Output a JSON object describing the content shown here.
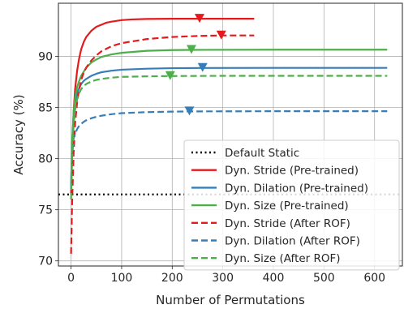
{
  "chart_data": {
    "type": "line",
    "title": "",
    "xlabel": "Number of Permutations",
    "ylabel": "Accuracy (%)",
    "xlim": [
      -25,
      655
    ],
    "ylim": [
      69.5,
      95.2
    ],
    "xticks": [
      0,
      100,
      200,
      300,
      400,
      500,
      600
    ],
    "yticks": [
      70,
      75,
      80,
      85,
      90
    ],
    "grid": true,
    "legend_position": "bottom-right",
    "reference_line": {
      "name": "Default Static",
      "y": 76.5,
      "color": "#000000",
      "style": "dotted"
    },
    "series": [
      {
        "name": "Dyn. Stride (Pre-trained)",
        "color": "#e41a1c",
        "style": "solid",
        "x": [
          0,
          2,
          5,
          8,
          12,
          16,
          20,
          25,
          30,
          40,
          50,
          60,
          70,
          80,
          100,
          120,
          150,
          200,
          250,
          300,
          362
        ],
        "y": [
          76.5,
          80.5,
          84.5,
          86.8,
          88.6,
          89.8,
          90.7,
          91.4,
          91.9,
          92.5,
          92.9,
          93.1,
          93.3,
          93.4,
          93.55,
          93.62,
          93.66,
          93.68,
          93.68,
          93.68,
          93.68
        ],
        "marker": {
          "x": 254,
          "y": 93.68,
          "shape": "triangle-down"
        }
      },
      {
        "name": "Dyn. Dilation (Pre-trained)",
        "color": "#377eb8",
        "style": "solid",
        "x": [
          0,
          2,
          5,
          8,
          12,
          16,
          20,
          25,
          30,
          40,
          50,
          60,
          80,
          100,
          150,
          200,
          260,
          400,
          500,
          625
        ],
        "y": [
          77.5,
          81.5,
          84.0,
          85.5,
          86.4,
          86.9,
          87.3,
          87.6,
          87.8,
          88.1,
          88.3,
          88.45,
          88.6,
          88.7,
          88.8,
          88.85,
          88.87,
          88.88,
          88.88,
          88.88
        ],
        "marker": {
          "x": 260,
          "y": 88.87,
          "shape": "triangle-down"
        }
      },
      {
        "name": "Dyn. Size (Pre-trained)",
        "color": "#4daf4a",
        "style": "solid",
        "x": [
          0,
          2,
          5,
          8,
          12,
          16,
          20,
          25,
          30,
          40,
          50,
          60,
          80,
          100,
          150,
          200,
          238,
          400,
          500,
          625
        ],
        "y": [
          77.0,
          81.5,
          84.5,
          86.0,
          87.0,
          87.6,
          88.1,
          88.5,
          88.9,
          89.4,
          89.7,
          89.95,
          90.2,
          90.35,
          90.55,
          90.62,
          90.64,
          90.66,
          90.66,
          90.66
        ],
        "marker": {
          "x": 238,
          "y": 90.64,
          "shape": "triangle-down"
        }
      },
      {
        "name": "Dyn. Stride (After ROF)",
        "color": "#e41a1c",
        "style": "dashed",
        "x": [
          0,
          2,
          5,
          8,
          12,
          16,
          20,
          25,
          30,
          40,
          50,
          60,
          80,
          100,
          150,
          200,
          250,
          297,
          362
        ],
        "y": [
          70.7,
          75.5,
          80.5,
          83.5,
          85.5,
          86.8,
          87.7,
          88.4,
          88.9,
          89.6,
          90.1,
          90.5,
          91.0,
          91.3,
          91.7,
          91.9,
          92.0,
          92.05,
          92.05
        ],
        "marker": {
          "x": 297,
          "y": 92.05,
          "shape": "triangle-down"
        }
      },
      {
        "name": "Dyn. Dilation (After ROF)",
        "color": "#377eb8",
        "style": "dashed",
        "x": [
          0,
          2,
          5,
          8,
          12,
          16,
          20,
          25,
          30,
          40,
          50,
          60,
          80,
          100,
          150,
          200,
          234,
          400,
          500,
          625
        ],
        "y": [
          77.0,
          80.0,
          82.0,
          82.4,
          82.9,
          83.2,
          83.4,
          83.6,
          83.75,
          83.95,
          84.1,
          84.2,
          84.35,
          84.45,
          84.55,
          84.6,
          84.62,
          84.64,
          84.64,
          84.64
        ],
        "marker": {
          "x": 234,
          "y": 84.62,
          "shape": "triangle-down"
        }
      },
      {
        "name": "Dyn. Size (After ROF)",
        "color": "#4daf4a",
        "style": "dashed",
        "x": [
          0,
          2,
          5,
          8,
          12,
          16,
          20,
          25,
          30,
          40,
          50,
          60,
          80,
          100,
          150,
          196,
          300,
          400,
          500,
          625
        ],
        "y": [
          76.0,
          80.0,
          83.2,
          84.8,
          85.8,
          86.4,
          86.8,
          87.1,
          87.3,
          87.55,
          87.7,
          87.8,
          87.92,
          88.0,
          88.05,
          88.08,
          88.1,
          88.1,
          88.1,
          88.1
        ],
        "marker": {
          "x": 196,
          "y": 88.08,
          "shape": "triangle-down"
        }
      }
    ]
  }
}
